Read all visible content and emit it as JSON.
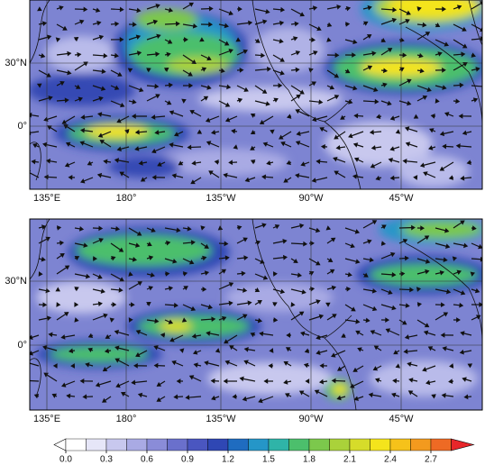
{
  "panels": [
    {
      "lon_labels": [
        "135°E",
        "180°",
        "135°W",
        "90°W",
        "45°W"
      ],
      "lat_labels": [
        "30°N",
        "0°"
      ]
    },
    {
      "lon_labels": [
        "135°E",
        "180°",
        "135°W",
        "90°W",
        "45°W"
      ],
      "lat_labels": [
        "30°N",
        "0°"
      ]
    }
  ],
  "colorbar": {
    "ticks": [
      {
        "value": 0,
        "label": "0.0"
      },
      0.3,
      0.6,
      0.9,
      1.2,
      1.5,
      1.8,
      2.1,
      2.4,
      2.7
    ],
    "colors": [
      "#ffffff",
      "#ffffff",
      "#e6e6f8",
      "#c8c8ee",
      "#a9aae4",
      "#8a8cd8",
      "#6a70cc",
      "#4a56c0",
      "#2f47b4",
      "#1f6cc0",
      "#2596c8",
      "#2fb4a8",
      "#4cbf6c",
      "#7cc84c",
      "#aad23a",
      "#d6dc2a",
      "#f4e41c",
      "#f6c21a",
      "#f39a1e",
      "#ee6a24",
      "#e8262a"
    ]
  }
}
